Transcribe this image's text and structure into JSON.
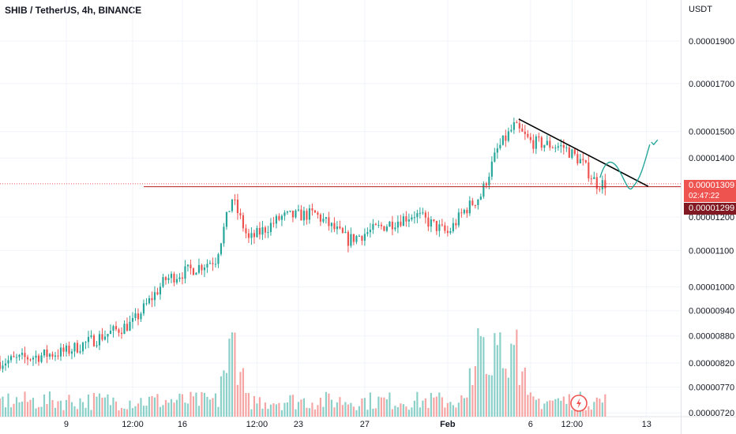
{
  "header": {
    "title": "SHIB / TetherUS, 4h, BINANCE"
  },
  "price_axis": {
    "currency": "USDT",
    "last_price": "0.00001309",
    "countdown": "02:47:22",
    "level_price": "0.00001299"
  },
  "colors": {
    "up": "#26a69a",
    "down": "#ef5350",
    "up_volume": "#8ad0c8",
    "down_volume": "#f5a5a3",
    "level_line": "#b71c1c",
    "trend_line": "#000000",
    "projection": "#26a69a",
    "grid": "#f0f3fa"
  },
  "icons": [
    "tradingview-logo-icon",
    "checkmark-icon"
  ],
  "chart_data": {
    "type": "candlestick",
    "title": "SHIB / TetherUS, 4h, BINANCE",
    "y_axis": {
      "scale": "log",
      "unit": "USDT",
      "ticks": [
        "0.00001900",
        "0.00001700",
        "0.00001500",
        "0.00001400",
        "0.00001200",
        "0.00001100",
        "0.00001000",
        "0.00000940",
        "0.00000880",
        "0.00000820",
        "0.00000770",
        "0.00000720"
      ],
      "range": [
        7.1e-06,
        2.05e-05
      ]
    },
    "x_axis": {
      "ticks": [
        "9",
        "12:00",
        "16",
        "12:00",
        "23",
        "27",
        "Feb",
        "6",
        "12:00",
        "13"
      ],
      "range_days_from_jan5": [
        0,
        39.2
      ]
    },
    "price_anchors": [
      {
        "date": "Jan 5",
        "price": 8.22e-06
      },
      {
        "date": "Jan 9",
        "price": 8.45e-06
      },
      {
        "date": "Jan 13",
        "price": 9.1e-06
      },
      {
        "date": "Jan 15",
        "price": 1.02e-05
      },
      {
        "date": "Jan 17",
        "price": 1.055e-05
      },
      {
        "date": "Jan 18",
        "price": 1.075e-05
      },
      {
        "date": "Jan 19",
        "price": 1.26e-05
      },
      {
        "date": "Jan 20",
        "price": 1.13e-05
      },
      {
        "date": "Jan 22",
        "price": 1.2e-05
      },
      {
        "date": "Jan 24",
        "price": 1.21e-05
      },
      {
        "date": "Jan 26",
        "price": 1.13e-05
      },
      {
        "date": "Jan 28",
        "price": 1.17e-05
      },
      {
        "date": "Jan 30",
        "price": 1.21e-05
      },
      {
        "date": "Feb 1",
        "price": 1.15e-05
      },
      {
        "date": "Feb 2",
        "price": 1.22e-05
      },
      {
        "date": "Feb 3",
        "price": 1.27e-05
      },
      {
        "date": "Feb 4",
        "price": 1.43e-05
      },
      {
        "date": "Feb 5",
        "price": 1.52e-05
      },
      {
        "date": "Feb 6",
        "price": 1.46e-05
      },
      {
        "date": "Feb 8",
        "price": 1.44e-05
      },
      {
        "date": "Feb 9",
        "price": 1.39e-05
      },
      {
        "date": "Feb 10",
        "price": 1.309e-05
      }
    ],
    "volume_spikes": [
      "Jan 19",
      "Feb 3",
      "Feb 4",
      "Feb 5"
    ],
    "annotations": {
      "support_level": 1.299e-05,
      "descending_trendline": [
        {
          "date": "Feb 5",
          "price": 1.55e-05
        },
        {
          "date": "Feb 13",
          "price": 1.3e-05
        }
      ],
      "projection_path": [
        {
          "date": "Feb 10",
          "price": 1.33e-05
        },
        {
          "date": "Feb 11",
          "price": 1.37e-05
        },
        {
          "date": "Feb 12",
          "price": 1.3e-05
        },
        {
          "date": "Feb 13",
          "price": 1.45e-05
        }
      ]
    }
  }
}
